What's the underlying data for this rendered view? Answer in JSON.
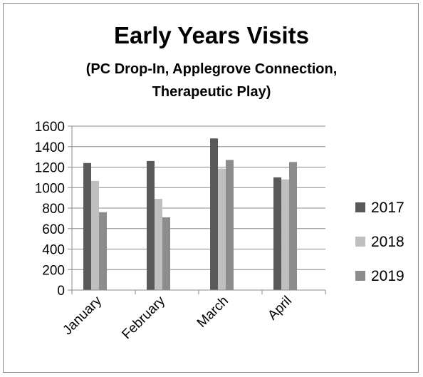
{
  "chart_data": {
    "type": "bar",
    "title": "Early Years Visits",
    "subtitle_lines": [
      "(PC Drop-In, Applegrove Connection,",
      "Therapeutic Play)"
    ],
    "categories": [
      "January",
      "February",
      "March",
      "April"
    ],
    "series": [
      {
        "name": "2017",
        "color": "#595959",
        "values": [
          1240,
          1260,
          1480,
          1100
        ]
      },
      {
        "name": "2018",
        "color": "#bfbfbf",
        "values": [
          1065,
          890,
          1185,
          1080
        ]
      },
      {
        "name": "2019",
        "color": "#8c8c8c",
        "values": [
          760,
          710,
          1270,
          1250
        ]
      }
    ],
    "ylim": [
      0,
      1600
    ],
    "yticks": [
      "0",
      "200",
      "400",
      "600",
      "800",
      "1000",
      "1200",
      "1400",
      "1600"
    ],
    "grid": true,
    "legend_position": "right"
  }
}
